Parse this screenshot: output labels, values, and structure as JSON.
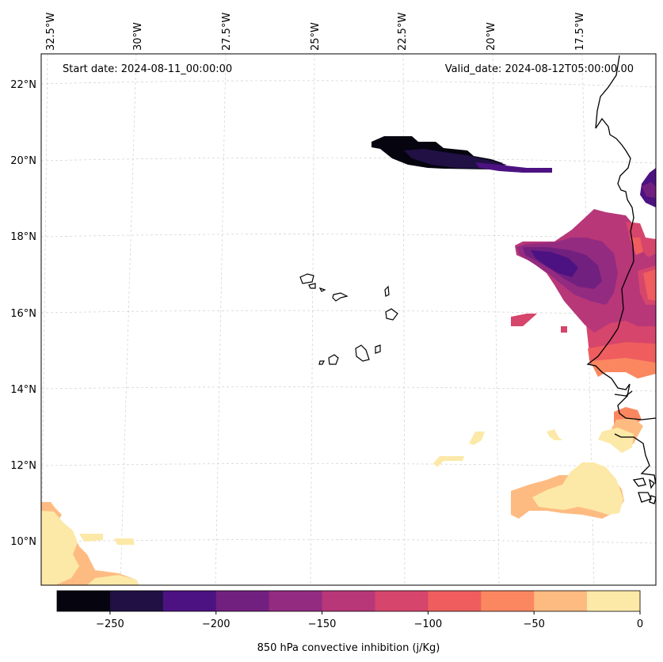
{
  "header": {
    "start_date": "Start date: 2024-08-11_00:00:00",
    "valid_date": "Valid_date: 2024-08-12T05:00:00.00"
  },
  "lon_ticks": [
    "32.5°W",
    "30°W",
    "27.5°W",
    "25°W",
    "22.5°W",
    "20°W",
    "17.5°W"
  ],
  "lat_ticks": [
    "22°N",
    "20°N",
    "18°N",
    "16°N",
    "14°N",
    "12°N",
    "10°N"
  ],
  "colorbar": {
    "label": "850 hPa convective inhibition (j/Kg)",
    "ticks": [
      "−250",
      "−200",
      "−150",
      "−100",
      "−50",
      "0"
    ],
    "levels": [
      -275,
      -250,
      -225,
      -200,
      -175,
      -150,
      -125,
      -100,
      -75,
      -50,
      -25,
      0
    ],
    "colors": [
      "#05040f",
      "#201043",
      "#4c1281",
      "#72207f",
      "#932b80",
      "#b73779",
      "#d6456c",
      "#ef5d5e",
      "#fb8761",
      "#febb81",
      "#fce9a8"
    ]
  }
}
